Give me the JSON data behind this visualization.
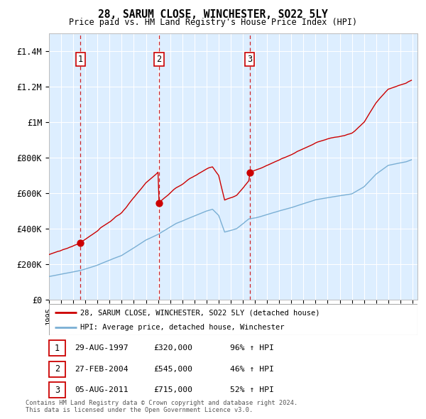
{
  "title": "28, SARUM CLOSE, WINCHESTER, SO22 5LY",
  "subtitle": "Price paid vs. HM Land Registry's House Price Index (HPI)",
  "line1_label": "28, SARUM CLOSE, WINCHESTER, SO22 5LY (detached house)",
  "line2_label": "HPI: Average price, detached house, Winchester",
  "sale1_label": "29-AUG-1997",
  "sale1_price_str": "£320,000",
  "sale1_price": 320000,
  "sale1_year": 1997,
  "sale1_month": 8,
  "sale1_pct": "96% ↑ HPI",
  "sale2_label": "27-FEB-2004",
  "sale2_price_str": "£545,000",
  "sale2_price": 545000,
  "sale2_year": 2004,
  "sale2_month": 2,
  "sale2_pct": "46% ↑ HPI",
  "sale3_label": "05-AUG-2011",
  "sale3_price_str": "£715,000",
  "sale3_price": 715000,
  "sale3_year": 2011,
  "sale3_month": 8,
  "sale3_pct": "52% ↑ HPI",
  "ylim_max": 1500000,
  "ylabel_ticks": [
    0,
    200000,
    400000,
    600000,
    800000,
    1000000,
    1200000,
    1400000
  ],
  "ylabel_labels": [
    "£0",
    "£200K",
    "£400K",
    "£600K",
    "£800K",
    "£1M",
    "£1.2M",
    "£1.4M"
  ],
  "hpi_color": "#7aafd4",
  "price_color": "#cc0000",
  "vline_color": "#cc0000",
  "bg_color": "#ddeeff",
  "grid_color": "#ffffff",
  "footer_text": "Contains HM Land Registry data © Crown copyright and database right 2024.\nThis data is licensed under the Open Government Licence v3.0."
}
